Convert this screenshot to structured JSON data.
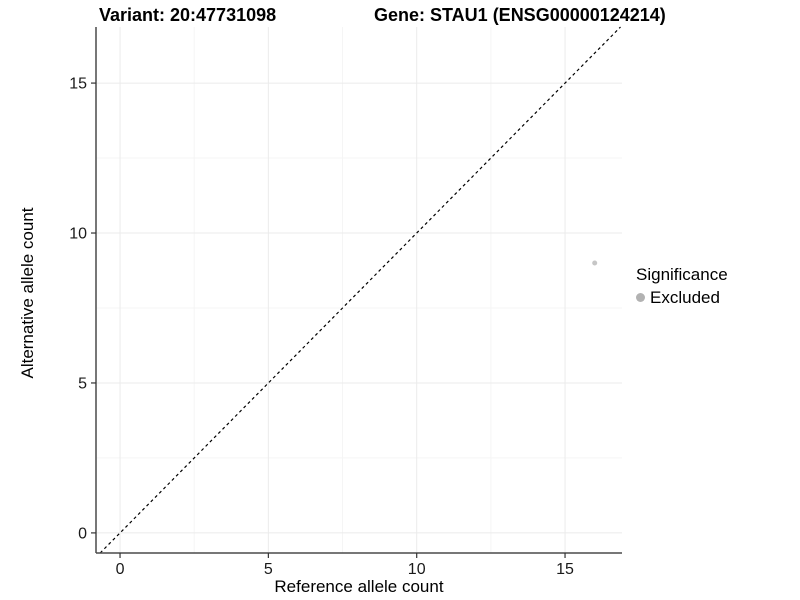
{
  "chart_data": {
    "type": "scatter",
    "title_left": "Variant: 20:47731098",
    "title_right": "Gene: STAU1 (ENSG00000124214)",
    "xlabel": "Reference allele count",
    "ylabel": "Alternative allele count",
    "xlim": [
      -0.81,
      16.92
    ],
    "ylim": [
      -0.67,
      16.87
    ],
    "x_ticks": [
      0,
      5,
      10,
      15
    ],
    "y_ticks": [
      0,
      5,
      10,
      15
    ],
    "x_minor_ticks": [
      2.5,
      7.5,
      12.5
    ],
    "y_minor_ticks": [
      2.5,
      7.5,
      12.5
    ],
    "grid": "major+minor",
    "series": [
      {
        "name": "Excluded",
        "color": "#c6c6c6",
        "point_radius": 2.5,
        "points": [
          {
            "x": 16,
            "y": 9
          }
        ]
      }
    ],
    "reference_line": {
      "equation": "y = x",
      "style": "dashed",
      "color": "#000000"
    },
    "legend": {
      "title": "Significance",
      "position": "right",
      "items": [
        {
          "label": "Excluded",
          "color": "#b2b2b2"
        }
      ]
    },
    "colors": {
      "grid_major": "#ebebeb",
      "grid_minor": "#f5f5f5",
      "axis_line": "#4a4a4a",
      "tick_mark": "#333333",
      "tick_text": "#1a1a1a"
    }
  }
}
